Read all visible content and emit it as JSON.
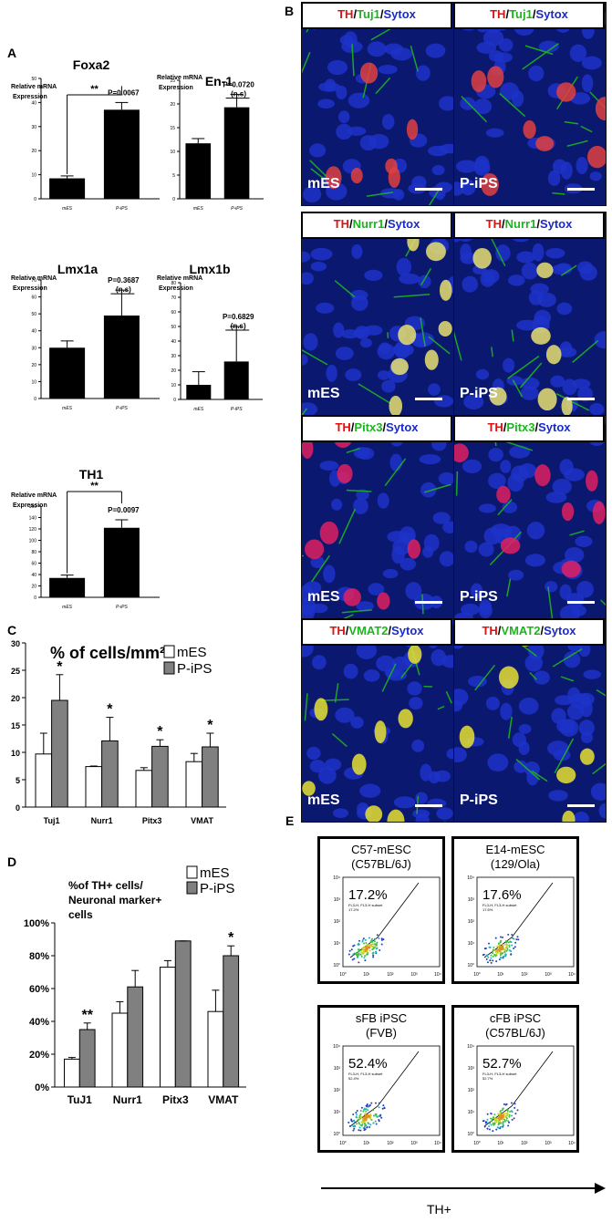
{
  "panel_letters": {
    "a": "A",
    "b": "B",
    "c": "C",
    "d": "D",
    "e": "E"
  },
  "panelA": {
    "charts": [
      {
        "title": "Foxa2",
        "ylabel": "Relative mRNA Expression",
        "categories": [
          "mES",
          "P-iPS"
        ],
        "values": [
          8.5,
          37
        ],
        "errors": [
          1,
          3
        ],
        "ylim": [
          0,
          50
        ],
        "yticks": [
          0,
          10,
          20,
          30,
          40,
          50
        ],
        "annotations": [
          "P=0.0067",
          "**"
        ]
      },
      {
        "title": "En-1",
        "ylabel": "Relative mRNA Expression",
        "categories": [
          "mES",
          "P-iPS"
        ],
        "values": [
          11.7,
          19.3
        ],
        "errors": [
          1,
          2.7
        ],
        "ylim": [
          0,
          25
        ],
        "yticks": [
          0,
          5,
          10,
          15,
          20,
          25
        ],
        "annotations": [
          "P=0.0720",
          "(n.s)"
        ]
      },
      {
        "title": "Lmx1a",
        "ylabel": "Relative mRNA Expression",
        "categories": [
          "mES",
          "P-iPS"
        ],
        "values": [
          30,
          49
        ],
        "errors": [
          4,
          15
        ],
        "ylim": [
          0,
          70
        ],
        "yticks": [
          0,
          10,
          20,
          30,
          40,
          50,
          60,
          70
        ],
        "annotations": [
          "P=0.3687",
          "(n.s)"
        ]
      },
      {
        "title": "Lmx1b",
        "ylabel": "Relative mRNA Expression",
        "categories": [
          "mES",
          "P-iPS"
        ],
        "values": [
          10,
          26
        ],
        "errors": [
          9,
          24
        ],
        "ylim": [
          0,
          80
        ],
        "yticks": [
          0,
          10,
          20,
          30,
          40,
          50,
          60,
          70,
          80
        ],
        "annotations": [
          "P=0.6829",
          "(n.s)"
        ]
      },
      {
        "title": "TH1",
        "ylabel": "Relative mRNA Expression",
        "categories": [
          "mES",
          "P-iPS"
        ],
        "values": [
          34,
          122
        ],
        "errors": [
          5,
          14
        ],
        "ylim": [
          0,
          160
        ],
        "yticks": [
          0,
          20,
          40,
          60,
          80,
          100,
          120,
          140,
          160
        ],
        "annotations": [
          "P=0.0097",
          "**"
        ]
      }
    ]
  },
  "panelB": {
    "rows": [
      {
        "marker": "Tuj1",
        "labels": [
          "mES",
          "P-iPS"
        ],
        "color": "#1db51d"
      },
      {
        "marker": "Nurr1",
        "labels": [
          "mES",
          "P-iPS"
        ],
        "color": "#1db51d"
      },
      {
        "marker": "Pitx3",
        "labels": [
          "mES",
          "P-iPS"
        ],
        "color": "#1db51d"
      },
      {
        "marker": "VMAT2",
        "labels": [
          "mES",
          "P-iPS"
        ],
        "color": "#1db51d"
      }
    ],
    "th": "TH",
    "sytox": "Sytox",
    "slash": "/",
    "colors": {
      "th": "#e01010",
      "sytox": "#1a2ac8"
    }
  },
  "chart_data": [
    {
      "type": "bar",
      "title": "% of cells/mm²",
      "categories": [
        "Tuj1",
        "Nurr1",
        "Pitx3",
        "VMAT"
      ],
      "series": [
        {
          "name": "mES",
          "values": [
            9.7,
            7.4,
            6.7,
            8.3
          ],
          "errors": [
            3.8,
            0.1,
            0.5,
            1.5
          ],
          "color": "#ffffff"
        },
        {
          "name": "P-iPS",
          "values": [
            19.5,
            12.1,
            11.1,
            11
          ],
          "errors": [
            4.7,
            4.3,
            1.2,
            2.5
          ],
          "color": "#808080"
        }
      ],
      "ylim": [
        0,
        30
      ],
      "yticks": [
        0,
        5,
        10,
        15,
        20,
        25,
        30
      ],
      "annotations": [
        "*",
        "*",
        "*",
        "*"
      ]
    },
    {
      "type": "bar",
      "title": "%of TH+ cells/ Neuronal marker+ cells",
      "categories": [
        "TuJ1",
        "Nurr1",
        "Pitx3",
        "VMAT"
      ],
      "series": [
        {
          "name": "mES",
          "values": [
            17,
            45,
            73,
            46
          ],
          "errors": [
            1,
            7,
            4,
            13
          ],
          "color": "#ffffff"
        },
        {
          "name": "P-iPS",
          "values": [
            35,
            61,
            89,
            80
          ],
          "errors": [
            4,
            10,
            0,
            6
          ],
          "color": "#808080"
        }
      ],
      "ylim": [
        0,
        100
      ],
      "yticks": [
        "0%",
        "20%",
        "40%",
        "60%",
        "80%",
        "100%"
      ],
      "annotations": [
        "**",
        "",
        "",
        "*"
      ]
    }
  ],
  "panelE": {
    "boxes": [
      {
        "title1": "C57-mESC",
        "title2": "(C57BL/6J)",
        "pct": "17.2%",
        "small1": "FL3-H, FL3-H subset",
        "small2": "17.2%"
      },
      {
        "title1": "E14-mESC",
        "title2": "(129/Ola)",
        "pct": "17.6%",
        "small1": "FL3-H, FL3-H subset",
        "small2": "17.6%"
      },
      {
        "title1": "sFB iPSC",
        "title2": "(FVB)",
        "pct": "52.4%",
        "small1": "FL3-H, FL3-H subset",
        "small2": "52.4%"
      },
      {
        "title1": "cFB iPSC",
        "title2": "(C57BL/6J)",
        "pct": "52.7%",
        "small1": "FL3-H, FL3-H subset",
        "small2": "52.7%"
      }
    ],
    "axis_label": "TH+"
  }
}
